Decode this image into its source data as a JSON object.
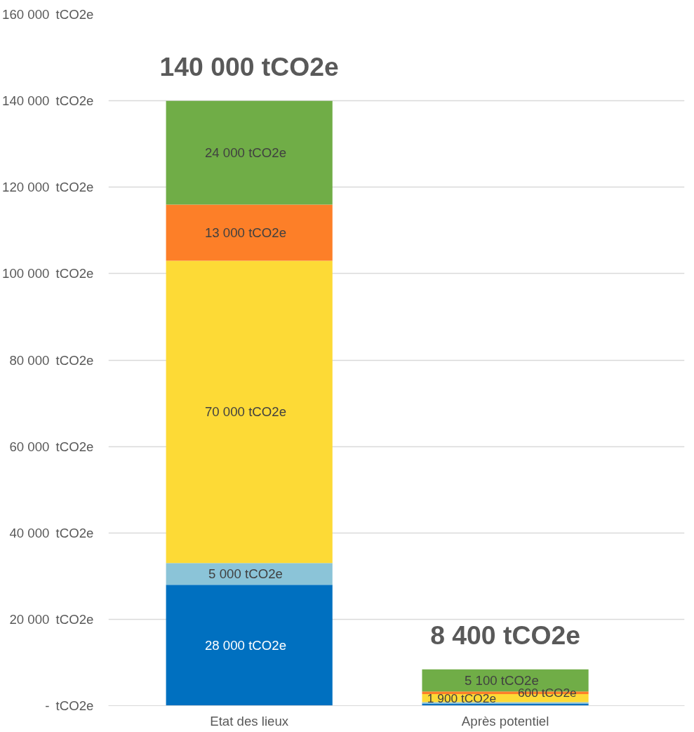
{
  "chart_data": {
    "type": "bar",
    "stacked": true,
    "categories": [
      "Etat des lieux",
      "Après potentiel"
    ],
    "series": [
      {
        "color": "#0070c0",
        "values": [
          28000,
          500
        ],
        "value_labels": [
          "28 000   tCO2e",
          null
        ]
      },
      {
        "color": "#8bc4d8",
        "values": [
          5000,
          300
        ],
        "value_labels": [
          "5 000   tCO2e",
          null
        ]
      },
      {
        "color": "#fdda36",
        "values": [
          70000,
          1900
        ],
        "value_labels": [
          "70 000   tCO2e",
          "1 900   tCO2e"
        ]
      },
      {
        "color": "#fd7f28",
        "values": [
          13000,
          600
        ],
        "value_labels": [
          "13 000   tCO2e",
          "600   tCO2e"
        ]
      },
      {
        "color": "#70ad47",
        "values": [
          24000,
          5100
        ],
        "value_labels": [
          "24 000   tCO2e",
          "5 100   tCO2e"
        ]
      }
    ],
    "totals": [
      "140 000 tCO2e",
      "8 400 tCO2e"
    ],
    "ylim": [
      0,
      160000
    ],
    "yticks": [
      {
        "value": 0,
        "label": "-"
      },
      {
        "value": 20000,
        "label": "20 000"
      },
      {
        "value": 40000,
        "label": "40 000"
      },
      {
        "value": 60000,
        "label": "60 000"
      },
      {
        "value": 80000,
        "label": "80 000"
      },
      {
        "value": 100000,
        "label": "100 000"
      },
      {
        "value": 120000,
        "label": "120 000"
      },
      {
        "value": 140000,
        "label": "140 000"
      },
      {
        "value": 160000,
        "label": "160 000"
      }
    ],
    "ylabel": "tCO2e",
    "grid": "y"
  }
}
